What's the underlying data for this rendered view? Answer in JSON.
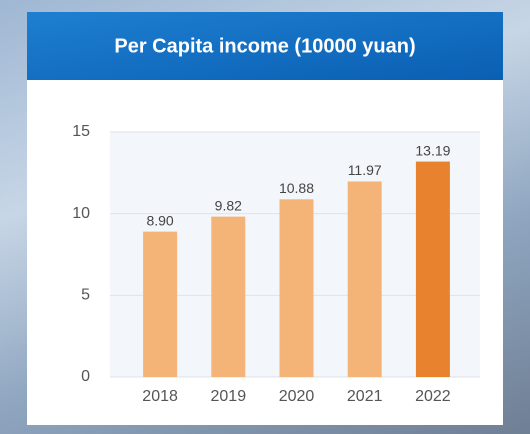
{
  "chart_data": {
    "type": "bar",
    "title": "Per Capita income (10000 yuan)",
    "categories": [
      "2018",
      "2019",
      "2020",
      "2021",
      "2022"
    ],
    "values": [
      8.9,
      9.82,
      10.88,
      11.97,
      13.19
    ],
    "value_labels": [
      "8.90",
      "9.82",
      "10.88",
      "11.97",
      "13.19"
    ],
    "colors": [
      "#f5b477",
      "#f5b477",
      "#f5b477",
      "#f5b477",
      "#e8822f"
    ],
    "ylim": [
      0,
      15
    ],
    "yticks": [
      0,
      5,
      10,
      15
    ],
    "grid": true
  }
}
